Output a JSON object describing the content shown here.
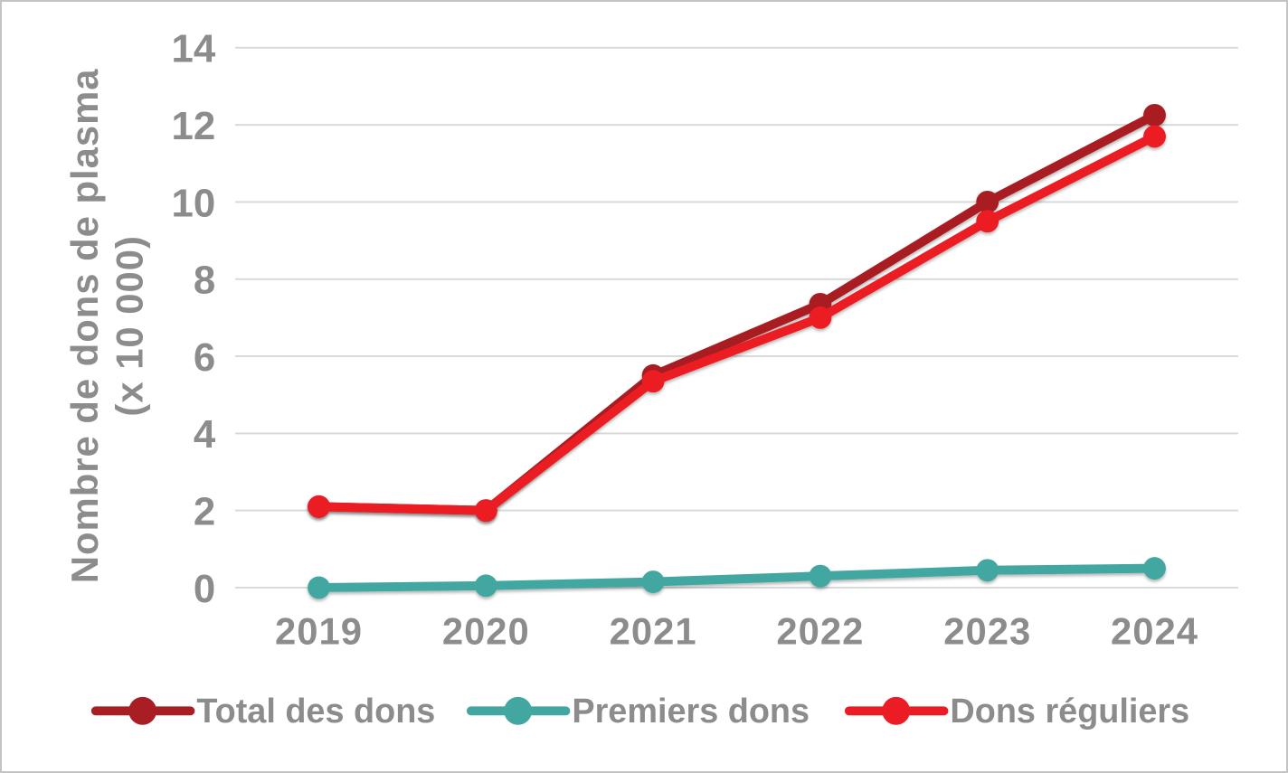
{
  "canvas": {
    "background_color": "#FFFFFF",
    "border_color": "#C4C4C4"
  },
  "chart_data": {
    "type": "line",
    "title": "",
    "ylabel_line1": "Nombre de dons de plasma",
    "ylabel_line2": "(x 10 000)",
    "xlabel": "",
    "categories": [
      "2019",
      "2020",
      "2021",
      "2022",
      "2023",
      "2024"
    ],
    "series": [
      {
        "name": "Total des dons",
        "color": "#A81E23",
        "values": [
          2.1,
          2.0,
          5.5,
          7.35,
          10.0,
          12.25
        ]
      },
      {
        "name": "Premiers dons",
        "color": "#42A7A0",
        "values": [
          0.0,
          0.05,
          0.15,
          0.3,
          0.45,
          0.5
        ]
      },
      {
        "name": "Dons réguliers",
        "color": "#EB1C24",
        "values": [
          2.1,
          2.0,
          5.35,
          7.0,
          9.5,
          11.7
        ]
      }
    ],
    "ylim": [
      0,
      14
    ],
    "yticks": [
      0,
      2,
      4,
      6,
      8,
      10,
      12,
      14
    ],
    "grid": true,
    "grid_color": "#D9D9D9",
    "text_color": "#8C8C8C",
    "legend_position": "bottom",
    "legend_labels": [
      "Total des dons",
      "Premiers dons",
      "Dons réguliers"
    ]
  }
}
